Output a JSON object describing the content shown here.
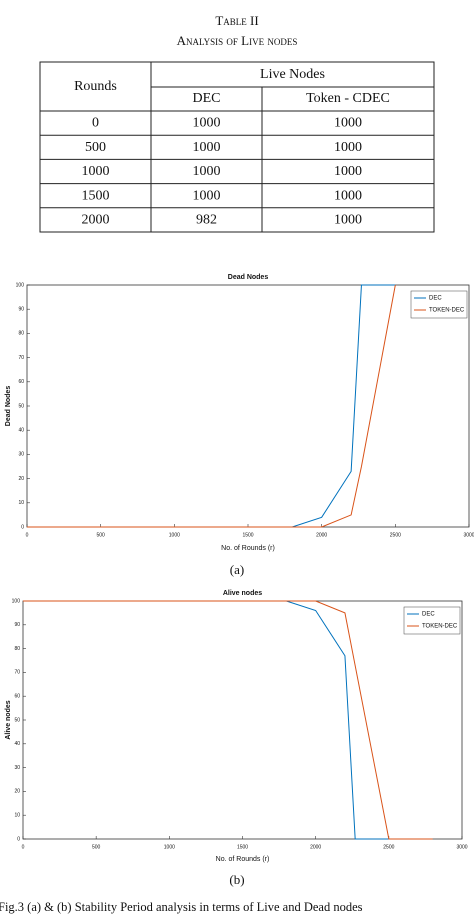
{
  "table": {
    "title": "Table II",
    "subtitle": "Analysis of Live nodes",
    "header": {
      "rounds": "Rounds",
      "group": "Live Nodes",
      "columns": [
        "DEC",
        "Token - CDEC"
      ]
    },
    "rows": [
      [
        0,
        1000,
        1000
      ],
      [
        500,
        1000,
        1000
      ],
      [
        1000,
        1000,
        1000
      ],
      [
        1500,
        1000,
        1000
      ],
      [
        2000,
        982,
        1000
      ]
    ]
  },
  "chart_data": [
    {
      "type": "line",
      "title": "Dead Nodes",
      "xlabel": "No. of Rounds (r)",
      "ylabel": "Dead Nodes",
      "xlim": [
        0,
        3000
      ],
      "xticks": [
        0,
        500,
        1000,
        1500,
        2000,
        2500,
        3000
      ],
      "ylim": [
        0,
        100
      ],
      "yticks": [
        0,
        10,
        20,
        30,
        40,
        50,
        60,
        70,
        80,
        90,
        100
      ],
      "legend": "upper right",
      "series": [
        {
          "name": "DEC",
          "color": "#0072bd",
          "x": [
            0,
            1800,
            2000,
            2200,
            2270,
            2500
          ],
          "values": [
            0,
            0,
            4,
            23,
            100,
            100
          ]
        },
        {
          "name": "TOKEN-DEC",
          "color": "#d95319",
          "x": [
            0,
            2000,
            2200,
            2270,
            2500
          ],
          "values": [
            0,
            0,
            5,
            25,
            100
          ]
        }
      ]
    },
    {
      "type": "line",
      "title": "Alive nodes",
      "xlabel": "No. of Rounds (r)",
      "ylabel": "Alive nodes",
      "xlim": [
        0,
        3000
      ],
      "xticks": [
        0,
        500,
        1000,
        1500,
        2000,
        2500,
        3000
      ],
      "ylim": [
        0,
        100
      ],
      "yticks": [
        0,
        10,
        20,
        30,
        40,
        50,
        60,
        70,
        80,
        90,
        100
      ],
      "legend": "upper right",
      "series": [
        {
          "name": "DEC",
          "color": "#0072bd",
          "x": [
            0,
            1800,
            2000,
            2200,
            2270,
            2500,
            2800
          ],
          "values": [
            100,
            100,
            96,
            77,
            0,
            0,
            0
          ]
        },
        {
          "name": "TOKEN-DEC",
          "color": "#d95319",
          "x": [
            0,
            2000,
            2200,
            2500,
            2800
          ],
          "values": [
            100,
            100,
            95,
            0,
            0
          ]
        }
      ]
    }
  ],
  "captions": [
    "(a)",
    "(b)"
  ],
  "figure_caption": "Fig.3 (a) & (b) Stability Period analysis in terms of Live and Dead nodes"
}
